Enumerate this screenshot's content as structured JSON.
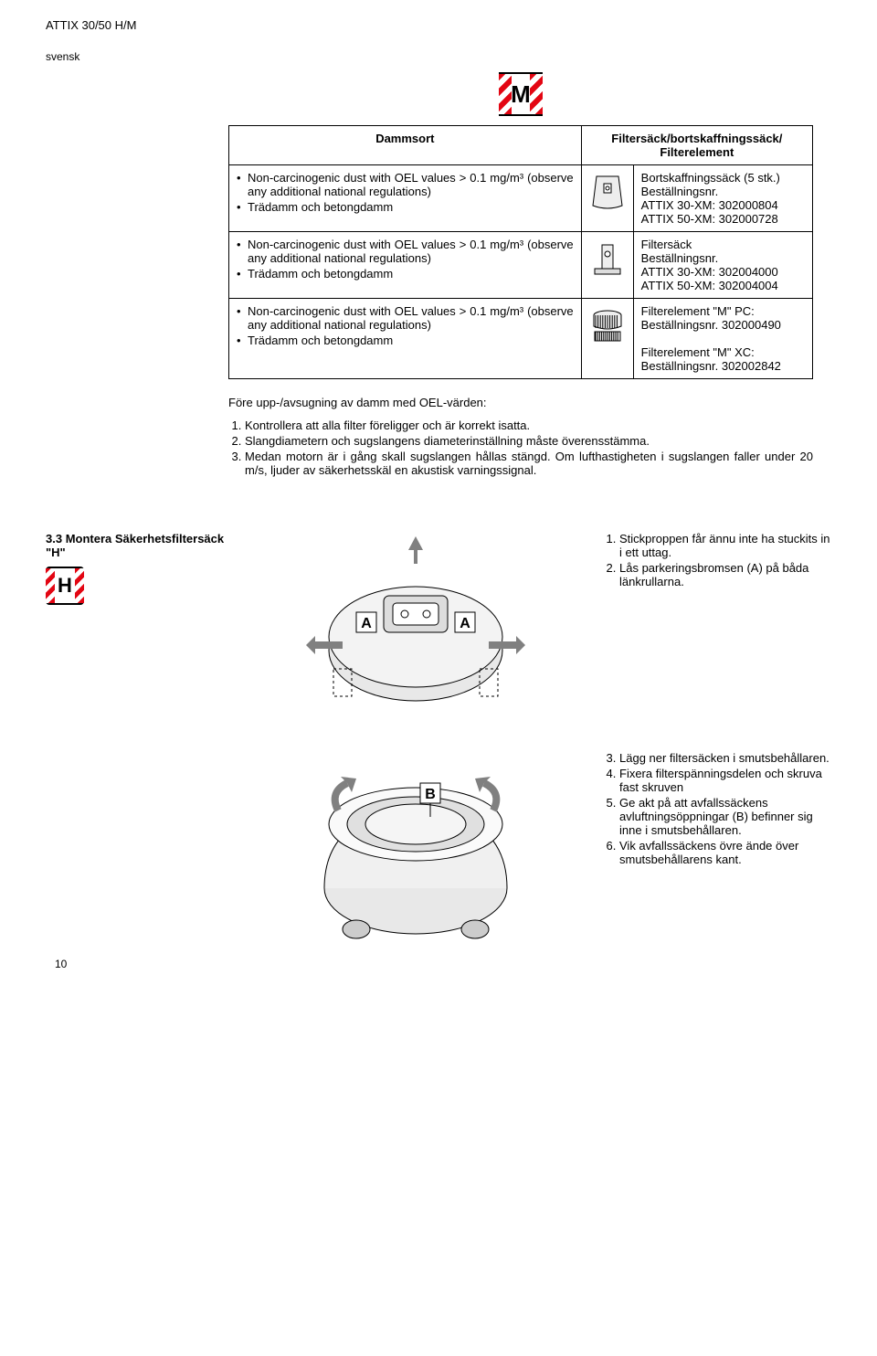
{
  "header": {
    "model": "ATTIX 30/50 H/M",
    "language": "svensk"
  },
  "badges": {
    "m_letter": "M",
    "h_letter": "H"
  },
  "table": {
    "head_left": "Dammsort",
    "head_right": "Filtersäck/bortskaffningssäck/ Filterelement",
    "rows": [
      {
        "left_items": [
          "Non-carcinogenic dust with OEL values > 0.1 mg/m³ (observe any additional national regulations)",
          "Trädamm och betongdamm"
        ],
        "right": "Bortskaffningssäck (5 stk.)\nBeställningsnr.\nATTIX 30-XM: 302000804\nATTIX 50-XM: 302000728"
      },
      {
        "left_items": [
          "Non-carcinogenic dust with OEL values > 0.1 mg/m³ (observe any additional national regulations)",
          "Trädamm och betongdamm"
        ],
        "right": "Filtersäck\nBeställningsnr.\nATTIX 30-XM: 302004000\nATTIX 50-XM: 302004004"
      },
      {
        "left_items": [
          "Non-carcinogenic dust with OEL values > 0.1 mg/m³ (observe any additional national regulations)",
          "Trädamm och betongdamm"
        ],
        "right": "Filterelement \"M\" PC:\nBeställningsnr. 302000490\n\nFilterelement \"M\" XC:\nBeställningsnr. 302002842"
      }
    ]
  },
  "pre_list": "Före upp-/avsugning av damm med OEL-värden:",
  "main_steps": [
    "Kontrollera att alla filter föreligger och är korrekt isatta.",
    "Slangdiametern och sugslangens diameterinställning måste överensstämma.",
    "Medan motorn är i gång skall sugslangen hållas stängd. Om lufthastigheten i sugslangen faller under 20 m/s, ljuder av säkerhetsskäl en akustisk varningssignal."
  ],
  "section33": {
    "num": "3.3",
    "title": "Montera Säkerhetsfiltersäck \"H\"",
    "steps_a": [
      "Stickproppen får ännu inte ha stuckits in i ett uttag.",
      "Lås parkeringsbromsen (A) på båda länkrullarna."
    ],
    "steps_b_start": 3,
    "steps_b": [
      "Lägg ner filtersäcken i smutsbehållaren.",
      "Fixera filterspänningsdelen och skruva fast skruven",
      "Ge akt på att avfallssäckens avluftningsöppningar (B) befinner sig inne i smutsbehållaren.",
      "Vik avfallssäckens övre ände över smutsbehållarens kant."
    ]
  },
  "labels": {
    "A": "A",
    "B": "B"
  },
  "page": "10"
}
